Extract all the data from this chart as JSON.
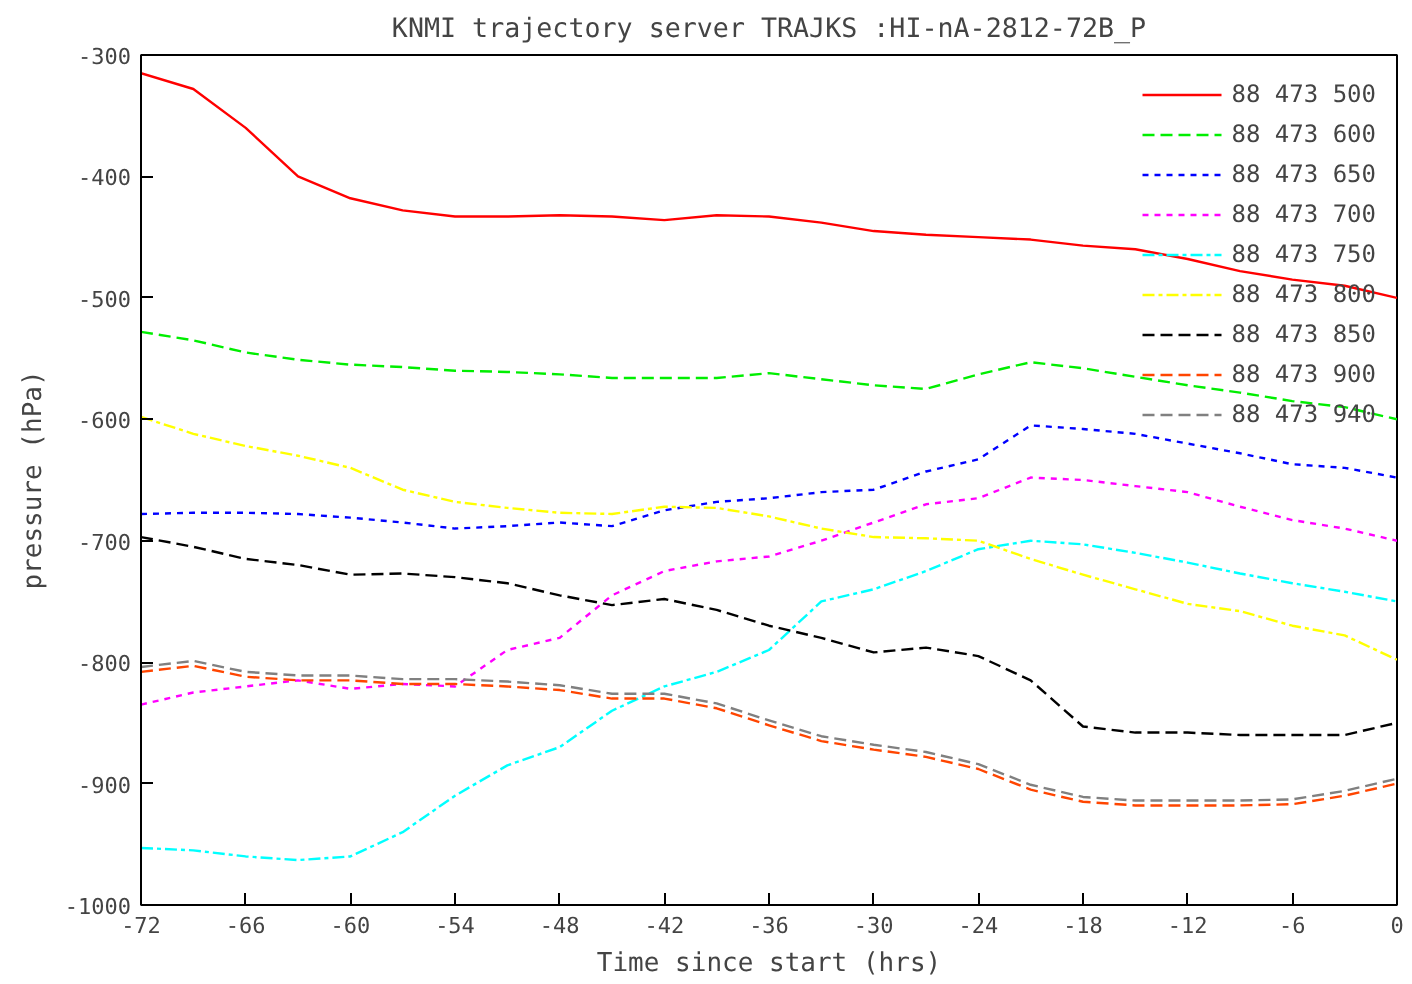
{
  "chart_data": {
    "type": "line",
    "title": "KNMI trajectory server TRAJKS :HI-nA-2812-72B_P",
    "xlabel": "Time since start (hrs)",
    "ylabel": "pressure (hPa)",
    "x": [
      -72,
      -69,
      -66,
      -63,
      -60,
      -57,
      -54,
      -51,
      -48,
      -45,
      -42,
      -39,
      -36,
      -33,
      -30,
      -27,
      -24,
      -21,
      -18,
      -15,
      -12,
      -9,
      -6,
      -3,
      0
    ],
    "xlim": [
      -72,
      0
    ],
    "ylim": [
      -1000,
      -300
    ],
    "xticks": [
      -72,
      -66,
      -60,
      -54,
      -48,
      -42,
      -36,
      -30,
      -24,
      -18,
      -12,
      -6,
      0
    ],
    "yticks": [
      -1000,
      -900,
      -800,
      -700,
      -600,
      -500,
      -400,
      -300
    ],
    "legend": "top right",
    "grid": false,
    "series": [
      {
        "name": "88 473 500",
        "color": "#ff0000",
        "line_style": "solid",
        "values": [
          -315,
          -328,
          -360,
          -400,
          -418,
          -428,
          -433,
          -433,
          -432,
          -433,
          -436,
          -432,
          -433,
          -438,
          -445,
          -448,
          -450,
          -452,
          -457,
          -460,
          -468,
          -478,
          -485,
          -490,
          -500
        ]
      },
      {
        "name": "88 473 600",
        "color": "#00ee00",
        "line_style": "dashed",
        "values": [
          -528,
          -535,
          -545,
          -551,
          -555,
          -557,
          -560,
          -561,
          -563,
          -566,
          -566,
          -566,
          -562,
          -567,
          -572,
          -575,
          -563,
          -553,
          -558,
          -565,
          -572,
          -578,
          -585,
          -590,
          -600
        ]
      },
      {
        "name": "88 473 650",
        "color": "#0000ff",
        "line_style": "dotted",
        "values": [
          -678,
          -677,
          -677,
          -678,
          -681,
          -685,
          -690,
          -688,
          -685,
          -688,
          -675,
          -668,
          -665,
          -660,
          -658,
          -643,
          -633,
          -605,
          -608,
          -612,
          -620,
          -628,
          -637,
          -640,
          -648
        ]
      },
      {
        "name": "88 473 700",
        "color": "#ff00ff",
        "line_style": "dotted",
        "values": [
          -835,
          -825,
          -820,
          -815,
          -822,
          -818,
          -820,
          -790,
          -780,
          -745,
          -725,
          -717,
          -713,
          -700,
          -685,
          -670,
          -665,
          -648,
          -650,
          -655,
          -660,
          -672,
          -683,
          -690,
          -700
        ]
      },
      {
        "name": "88 473 750",
        "color": "#00ffff",
        "line_style": "dashdot",
        "values": [
          -953,
          -955,
          -960,
          -963,
          -960,
          -940,
          -910,
          -885,
          -870,
          -840,
          -820,
          -808,
          -790,
          -750,
          -740,
          -725,
          -707,
          -700,
          -703,
          -710,
          -718,
          -727,
          -735,
          -742,
          -750
        ]
      },
      {
        "name": "88 473 800",
        "color": "#ffff00",
        "line_style": "dashdot",
        "values": [
          -598,
          -612,
          -622,
          -630,
          -640,
          -658,
          -668,
          -673,
          -677,
          -678,
          -672,
          -673,
          -680,
          -690,
          -697,
          -698,
          -700,
          -715,
          -728,
          -740,
          -752,
          -758,
          -770,
          -778,
          -798
        ]
      },
      {
        "name": "88 473 850",
        "color": "#000000",
        "line_style": "dashed",
        "values": [
          -697,
          -705,
          -715,
          -720,
          -728,
          -727,
          -730,
          -735,
          -745,
          -753,
          -748,
          -757,
          -770,
          -780,
          -792,
          -788,
          -795,
          -815,
          -853,
          -858,
          -858,
          -860,
          -860,
          -860,
          -850
        ]
      },
      {
        "name": "88 473 900",
        "color": "#ff4500",
        "line_style": "dashed",
        "values": [
          -808,
          -803,
          -812,
          -815,
          -815,
          -818,
          -818,
          -820,
          -823,
          -830,
          -830,
          -838,
          -852,
          -865,
          -872,
          -878,
          -888,
          -905,
          -915,
          -918,
          -918,
          -918,
          -917,
          -910,
          -900
        ]
      },
      {
        "name": "88 473 940",
        "color": "#808080",
        "line_style": "dashed",
        "values": [
          -804,
          -799,
          -808,
          -811,
          -811,
          -814,
          -814,
          -816,
          -819,
          -826,
          -826,
          -834,
          -848,
          -861,
          -868,
          -874,
          -884,
          -901,
          -911,
          -914,
          -914,
          -914,
          -913,
          -906,
          -896
        ]
      }
    ]
  }
}
